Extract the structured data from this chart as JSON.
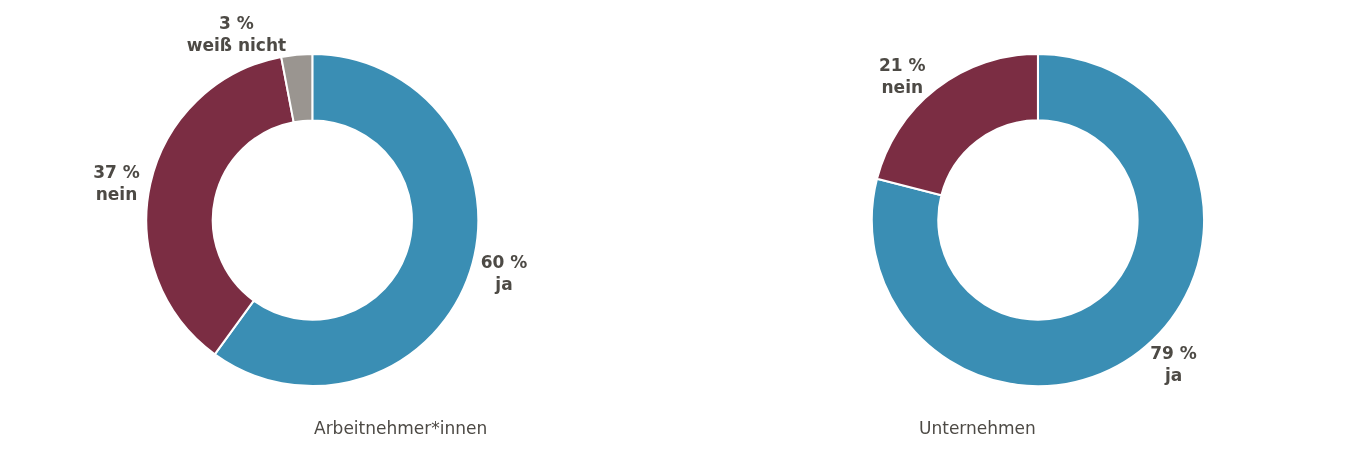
{
  "chart_data": [
    {
      "type": "donut",
      "title": "Arbeitnehmer*innen",
      "categories": [
        "ja",
        "nein",
        "weiß nicht"
      ],
      "values": [
        60,
        37,
        3
      ],
      "value_labels": [
        "60 %",
        "37 %",
        "3 %"
      ],
      "colors": [
        "#3a8eb4",
        "#7b2d43",
        "#9a9590"
      ]
    },
    {
      "type": "donut",
      "title": "Unternehmen",
      "categories": [
        "ja",
        "nein"
      ],
      "values": [
        79,
        21
      ],
      "value_labels": [
        "79 %",
        "21 %"
      ],
      "colors": [
        "#3a8eb4",
        "#7b2d43"
      ]
    }
  ]
}
